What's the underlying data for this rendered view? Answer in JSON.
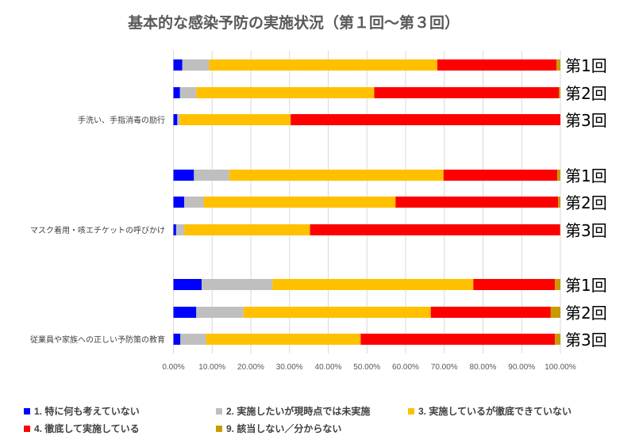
{
  "chart_data": {
    "type": "bar",
    "orientation": "horizontal",
    "stacked": "percent",
    "title": "基本的な感染予防の実施状況（第１回～第３回）",
    "xlim": [
      0,
      100
    ],
    "x_ticks": [
      "0.00%",
      "10.00%",
      "20.00%",
      "30.00%",
      "40.00%",
      "50.00%",
      "60.00%",
      "70.00%",
      "80.00%",
      "90.00%",
      "100.00%"
    ],
    "grid": true,
    "legend_position": "bottom",
    "groups": [
      {
        "label": "手洗い、手指消毒の励行",
        "rounds": [
          {
            "label": "第1回",
            "values": [
              2.3,
              6.9,
              59.0,
              30.8,
              1.0
            ]
          },
          {
            "label": "第2回",
            "values": [
              1.7,
              4.2,
              46.0,
              47.7,
              0.4
            ]
          },
          {
            "label": "第3回",
            "values": [
              1.0,
              0.6,
              28.7,
              69.7,
              0.0
            ]
          }
        ]
      },
      {
        "label": "マスク着用・咳エチケットの呼びかけ",
        "rounds": [
          {
            "label": "第1回",
            "values": [
              5.3,
              9.1,
              55.4,
              29.4,
              0.8
            ]
          },
          {
            "label": "第2回",
            "values": [
              2.8,
              5.0,
              49.6,
              42.0,
              0.6
            ]
          },
          {
            "label": "第3回",
            "values": [
              0.7,
              2.1,
              32.5,
              64.6,
              0.1
            ]
          }
        ]
      },
      {
        "label": "従業員や家族への正しい予防策の教育",
        "rounds": [
          {
            "label": "第1回",
            "values": [
              7.3,
              18.3,
              51.9,
              21.1,
              1.4
            ]
          },
          {
            "label": "第2回",
            "values": [
              5.9,
              12.2,
              48.4,
              31.0,
              2.5
            ]
          },
          {
            "label": "第3回",
            "values": [
              1.8,
              6.6,
              40.0,
              50.2,
              1.4
            ]
          }
        ]
      }
    ],
    "series": [
      {
        "name": "1. 特に何も考えていない",
        "color": "#0000FF"
      },
      {
        "name": "2. 実施したいが現時点では未実施",
        "color": "#BFBFBF"
      },
      {
        "name": "3. 実施しているが徹底できていない",
        "color": "#FFC000"
      },
      {
        "name": "4. 徹底して実施している",
        "color": "#FF0000"
      },
      {
        "name": "9. 該当しない／分からない",
        "color": "#C89B00"
      }
    ]
  }
}
